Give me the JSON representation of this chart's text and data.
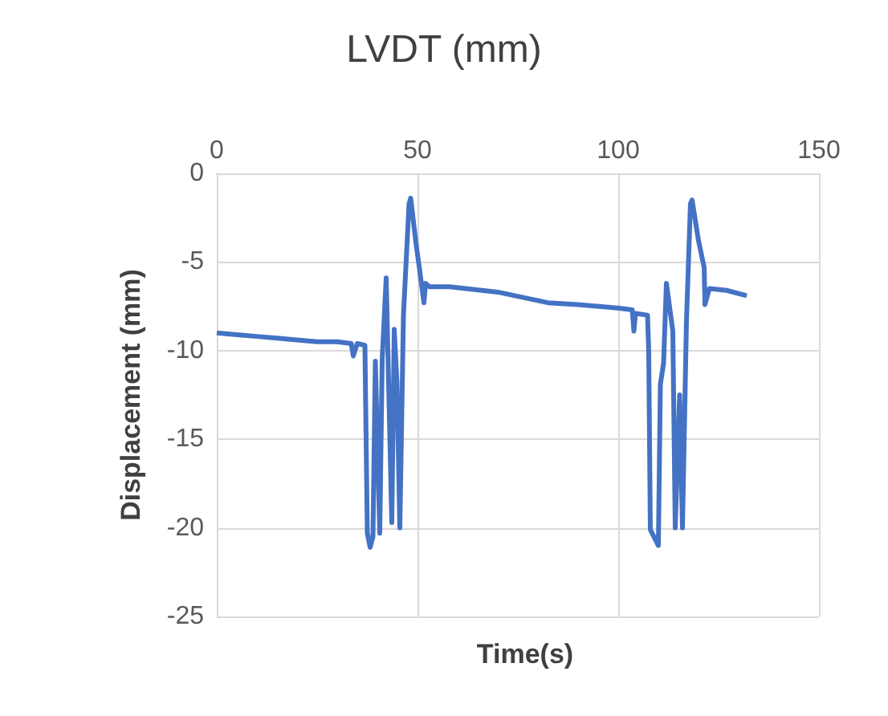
{
  "chart_data": {
    "type": "line",
    "title": "LVDT (mm)",
    "xlabel": "Time(s)",
    "ylabel": "Displacement (mm)",
    "xlim": [
      0,
      150
    ],
    "xticks": [
      0,
      50,
      100,
      150
    ],
    "ylim": [
      -25,
      0
    ],
    "yticks": [
      0,
      -5,
      -10,
      -15,
      -20,
      -25
    ],
    "grid": true,
    "marker": "none",
    "line_style": "solid",
    "series": [
      {
        "color": "#4472c4",
        "x": [
          0,
          5,
          10,
          15,
          20,
          25,
          30,
          33.5,
          34,
          35,
          36.9,
          37.5,
          38.2,
          38.9,
          39.5,
          40.6,
          41.2,
          42.2,
          43.6,
          44.2,
          44.9,
          45.6,
          46.5,
          47.9,
          48.3,
          49.6,
          50.5,
          51.6,
          52,
          53,
          58,
          70,
          82.5,
          90,
          99.9,
          103.5,
          103.9,
          104.3,
          107.3,
          107.6,
          108,
          110,
          110.5,
          111.3,
          112,
          113.6,
          114.2,
          115.3,
          116,
          117,
          118,
          118.4,
          120,
          121.4,
          121.6,
          122.7,
          127,
          132
        ],
        "values": [
          -9.0,
          -9.1,
          -9.2,
          -9.3,
          -9.4,
          -9.5,
          -9.5,
          -9.6,
          -10.3,
          -9.6,
          -9.7,
          -20.3,
          -21.1,
          -20.5,
          -10.6,
          -20.3,
          -10.5,
          -5.9,
          -19.7,
          -8.8,
          -11.9,
          -20.0,
          -8.0,
          -1.7,
          -1.4,
          -3.9,
          -5.4,
          -7.3,
          -6.2,
          -6.4,
          -6.4,
          -6.7,
          -7.3,
          -7.4,
          -7.6,
          -7.7,
          -8.9,
          -7.9,
          -8.0,
          -10.1,
          -20.1,
          -21.0,
          -11.9,
          -10.7,
          -6.2,
          -8.9,
          -20.0,
          -12.5,
          -20.0,
          -8.3,
          -1.7,
          -1.5,
          -3.8,
          -5.3,
          -7.4,
          -6.5,
          -6.6,
          -6.9
        ]
      }
    ]
  }
}
